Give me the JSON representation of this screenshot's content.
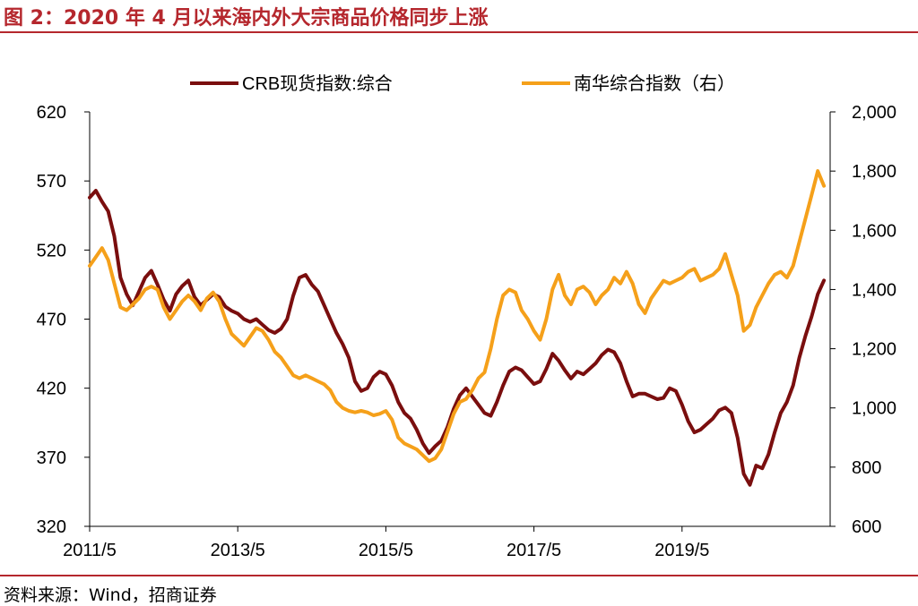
{
  "header": {
    "title": "图 2：2020 年 4 月以来海内外大宗商品价格同步上涨"
  },
  "footer": {
    "source": "资料来源：Wind，招商证券"
  },
  "colors": {
    "accent": "#b5272d",
    "crb": "#7a0e0e",
    "nanhua": "#f5a01a",
    "axis": "#000000"
  },
  "chart_data": {
    "type": "line",
    "title": "",
    "xlabel": "",
    "ylabel": "",
    "x_tick_labels": [
      "2011/5",
      "2013/5",
      "2015/5",
      "2017/5",
      "2019/5"
    ],
    "x_tick_dates": [
      "2011-05",
      "2013-05",
      "2015-05",
      "2017-05",
      "2019-05"
    ],
    "y_left": {
      "min": 320,
      "max": 620,
      "ticks": [
        620,
        570,
        520,
        470,
        420,
        370,
        320
      ]
    },
    "y_right": {
      "min": 600,
      "max": 2000,
      "ticks": [
        "2,000",
        "1,800",
        "1,600",
        "1,400",
        "1,200",
        "1,000",
        "800",
        "600"
      ]
    },
    "legend_position": "top",
    "grid": false,
    "series": [
      {
        "name": "CRB现货指数:综合",
        "axis": "left",
        "color": "#7a0e0e",
        "points": [
          [
            "2011-05",
            558
          ],
          [
            "2011-06",
            563
          ],
          [
            "2011-07",
            555
          ],
          [
            "2011-08",
            548
          ],
          [
            "2011-09",
            530
          ],
          [
            "2011-10",
            500
          ],
          [
            "2011-11",
            488
          ],
          [
            "2011-12",
            480
          ],
          [
            "2012-01",
            490
          ],
          [
            "2012-02",
            500
          ],
          [
            "2012-03",
            505
          ],
          [
            "2012-04",
            495
          ],
          [
            "2012-05",
            484
          ],
          [
            "2012-06",
            476
          ],
          [
            "2012-07",
            488
          ],
          [
            "2012-08",
            494
          ],
          [
            "2012-09",
            498
          ],
          [
            "2012-10",
            486
          ],
          [
            "2012-11",
            480
          ],
          [
            "2012-12",
            484
          ],
          [
            "2013-01",
            488
          ],
          [
            "2013-02",
            486
          ],
          [
            "2013-03",
            479
          ],
          [
            "2013-04",
            476
          ],
          [
            "2013-05",
            474
          ],
          [
            "2013-06",
            470
          ],
          [
            "2013-07",
            468
          ],
          [
            "2013-08",
            470
          ],
          [
            "2013-09",
            466
          ],
          [
            "2013-10",
            462
          ],
          [
            "2013-11",
            460
          ],
          [
            "2013-12",
            463
          ],
          [
            "2014-01",
            470
          ],
          [
            "2014-02",
            487
          ],
          [
            "2014-03",
            500
          ],
          [
            "2014-04",
            502
          ],
          [
            "2014-05",
            495
          ],
          [
            "2014-06",
            490
          ],
          [
            "2014-07",
            480
          ],
          [
            "2014-08",
            470
          ],
          [
            "2014-09",
            460
          ],
          [
            "2014-10",
            452
          ],
          [
            "2014-11",
            442
          ],
          [
            "2014-12",
            425
          ],
          [
            "2015-01",
            418
          ],
          [
            "2015-02",
            420
          ],
          [
            "2015-03",
            428
          ],
          [
            "2015-04",
            432
          ],
          [
            "2015-05",
            430
          ],
          [
            "2015-06",
            422
          ],
          [
            "2015-07",
            410
          ],
          [
            "2015-08",
            402
          ],
          [
            "2015-09",
            398
          ],
          [
            "2015-10",
            390
          ],
          [
            "2015-11",
            380
          ],
          [
            "2015-12",
            373
          ],
          [
            "2016-01",
            378
          ],
          [
            "2016-02",
            382
          ],
          [
            "2016-03",
            392
          ],
          [
            "2016-04",
            405
          ],
          [
            "2016-05",
            415
          ],
          [
            "2016-06",
            420
          ],
          [
            "2016-07",
            414
          ],
          [
            "2016-08",
            408
          ],
          [
            "2016-09",
            402
          ],
          [
            "2016-10",
            400
          ],
          [
            "2016-11",
            410
          ],
          [
            "2016-12",
            422
          ],
          [
            "2017-01",
            432
          ],
          [
            "2017-02",
            435
          ],
          [
            "2017-03",
            433
          ],
          [
            "2017-04",
            428
          ],
          [
            "2017-05",
            423
          ],
          [
            "2017-06",
            425
          ],
          [
            "2017-07",
            434
          ],
          [
            "2017-08",
            445
          ],
          [
            "2017-09",
            440
          ],
          [
            "2017-10",
            433
          ],
          [
            "2017-11",
            427
          ],
          [
            "2017-12",
            432
          ],
          [
            "2018-01",
            430
          ],
          [
            "2018-02",
            434
          ],
          [
            "2018-03",
            438
          ],
          [
            "2018-04",
            444
          ],
          [
            "2018-05",
            448
          ],
          [
            "2018-06",
            446
          ],
          [
            "2018-07",
            438
          ],
          [
            "2018-08",
            425
          ],
          [
            "2018-09",
            414
          ],
          [
            "2018-10",
            416
          ],
          [
            "2018-11",
            416
          ],
          [
            "2018-12",
            414
          ],
          [
            "2019-01",
            412
          ],
          [
            "2019-02",
            413
          ],
          [
            "2019-03",
            420
          ],
          [
            "2019-04",
            418
          ],
          [
            "2019-05",
            408
          ],
          [
            "2019-06",
            396
          ],
          [
            "2019-07",
            388
          ],
          [
            "2019-08",
            390
          ],
          [
            "2019-09",
            394
          ],
          [
            "2019-10",
            398
          ],
          [
            "2019-11",
            404
          ],
          [
            "2019-12",
            406
          ],
          [
            "2020-01",
            402
          ],
          [
            "2020-02",
            384
          ],
          [
            "2020-03",
            358
          ],
          [
            "2020-04",
            350
          ],
          [
            "2020-05",
            364
          ],
          [
            "2020-06",
            362
          ],
          [
            "2020-07",
            372
          ],
          [
            "2020-08",
            388
          ],
          [
            "2020-09",
            402
          ],
          [
            "2020-10",
            410
          ],
          [
            "2020-11",
            422
          ],
          [
            "2020-12",
            442
          ],
          [
            "2021-01",
            458
          ],
          [
            "2021-02",
            472
          ],
          [
            "2021-03",
            488
          ],
          [
            "2021-04",
            498
          ]
        ]
      },
      {
        "name": "南华综合指数（右）",
        "axis": "right",
        "color": "#f5a01a",
        "points": [
          [
            "2011-05",
            1480
          ],
          [
            "2011-06",
            1510
          ],
          [
            "2011-07",
            1540
          ],
          [
            "2011-08",
            1500
          ],
          [
            "2011-09",
            1420
          ],
          [
            "2011-10",
            1340
          ],
          [
            "2011-11",
            1330
          ],
          [
            "2011-12",
            1350
          ],
          [
            "2012-01",
            1370
          ],
          [
            "2012-02",
            1400
          ],
          [
            "2012-03",
            1410
          ],
          [
            "2012-04",
            1400
          ],
          [
            "2012-05",
            1340
          ],
          [
            "2012-06",
            1300
          ],
          [
            "2012-07",
            1330
          ],
          [
            "2012-08",
            1360
          ],
          [
            "2012-09",
            1380
          ],
          [
            "2012-10",
            1360
          ],
          [
            "2012-11",
            1330
          ],
          [
            "2012-12",
            1370
          ],
          [
            "2013-01",
            1390
          ],
          [
            "2013-02",
            1360
          ],
          [
            "2013-03",
            1300
          ],
          [
            "2013-04",
            1250
          ],
          [
            "2013-05",
            1230
          ],
          [
            "2013-06",
            1210
          ],
          [
            "2013-07",
            1240
          ],
          [
            "2013-08",
            1270
          ],
          [
            "2013-09",
            1260
          ],
          [
            "2013-10",
            1230
          ],
          [
            "2013-11",
            1190
          ],
          [
            "2013-12",
            1170
          ],
          [
            "2014-01",
            1140
          ],
          [
            "2014-02",
            1110
          ],
          [
            "2014-03",
            1100
          ],
          [
            "2014-04",
            1110
          ],
          [
            "2014-05",
            1100
          ],
          [
            "2014-06",
            1090
          ],
          [
            "2014-07",
            1080
          ],
          [
            "2014-08",
            1060
          ],
          [
            "2014-09",
            1020
          ],
          [
            "2014-10",
            1000
          ],
          [
            "2014-11",
            990
          ],
          [
            "2014-12",
            985
          ],
          [
            "2015-01",
            990
          ],
          [
            "2015-02",
            985
          ],
          [
            "2015-03",
            975
          ],
          [
            "2015-04",
            980
          ],
          [
            "2015-05",
            990
          ],
          [
            "2015-06",
            960
          ],
          [
            "2015-07",
            900
          ],
          [
            "2015-08",
            880
          ],
          [
            "2015-09",
            870
          ],
          [
            "2015-10",
            860
          ],
          [
            "2015-11",
            840
          ],
          [
            "2015-12",
            820
          ],
          [
            "2016-01",
            830
          ],
          [
            "2016-02",
            860
          ],
          [
            "2016-03",
            920
          ],
          [
            "2016-04",
            980
          ],
          [
            "2016-05",
            1020
          ],
          [
            "2016-06",
            1030
          ],
          [
            "2016-07",
            1060
          ],
          [
            "2016-08",
            1100
          ],
          [
            "2016-09",
            1120
          ],
          [
            "2016-10",
            1200
          ],
          [
            "2016-11",
            1300
          ],
          [
            "2016-12",
            1380
          ],
          [
            "2017-01",
            1400
          ],
          [
            "2017-02",
            1390
          ],
          [
            "2017-03",
            1330
          ],
          [
            "2017-04",
            1300
          ],
          [
            "2017-05",
            1260
          ],
          [
            "2017-06",
            1230
          ],
          [
            "2017-07",
            1300
          ],
          [
            "2017-08",
            1400
          ],
          [
            "2017-09",
            1450
          ],
          [
            "2017-10",
            1380
          ],
          [
            "2017-11",
            1350
          ],
          [
            "2017-12",
            1400
          ],
          [
            "2018-01",
            1410
          ],
          [
            "2018-02",
            1390
          ],
          [
            "2018-03",
            1350
          ],
          [
            "2018-04",
            1380
          ],
          [
            "2018-05",
            1400
          ],
          [
            "2018-06",
            1440
          ],
          [
            "2018-07",
            1420
          ],
          [
            "2018-08",
            1460
          ],
          [
            "2018-09",
            1420
          ],
          [
            "2018-10",
            1350
          ],
          [
            "2018-11",
            1320
          ],
          [
            "2018-12",
            1370
          ],
          [
            "2019-01",
            1400
          ],
          [
            "2019-02",
            1430
          ],
          [
            "2019-03",
            1420
          ],
          [
            "2019-04",
            1430
          ],
          [
            "2019-05",
            1440
          ],
          [
            "2019-06",
            1460
          ],
          [
            "2019-07",
            1470
          ],
          [
            "2019-08",
            1430
          ],
          [
            "2019-09",
            1440
          ],
          [
            "2019-10",
            1450
          ],
          [
            "2019-11",
            1470
          ],
          [
            "2019-12",
            1520
          ],
          [
            "2020-01",
            1450
          ],
          [
            "2020-02",
            1380
          ],
          [
            "2020-03",
            1260
          ],
          [
            "2020-04",
            1280
          ],
          [
            "2020-05",
            1340
          ],
          [
            "2020-06",
            1380
          ],
          [
            "2020-07",
            1420
          ],
          [
            "2020-08",
            1450
          ],
          [
            "2020-09",
            1460
          ],
          [
            "2020-10",
            1440
          ],
          [
            "2020-11",
            1480
          ],
          [
            "2020-12",
            1560
          ],
          [
            "2021-01",
            1640
          ],
          [
            "2021-02",
            1720
          ],
          [
            "2021-03",
            1800
          ],
          [
            "2021-04",
            1750
          ]
        ]
      }
    ]
  }
}
